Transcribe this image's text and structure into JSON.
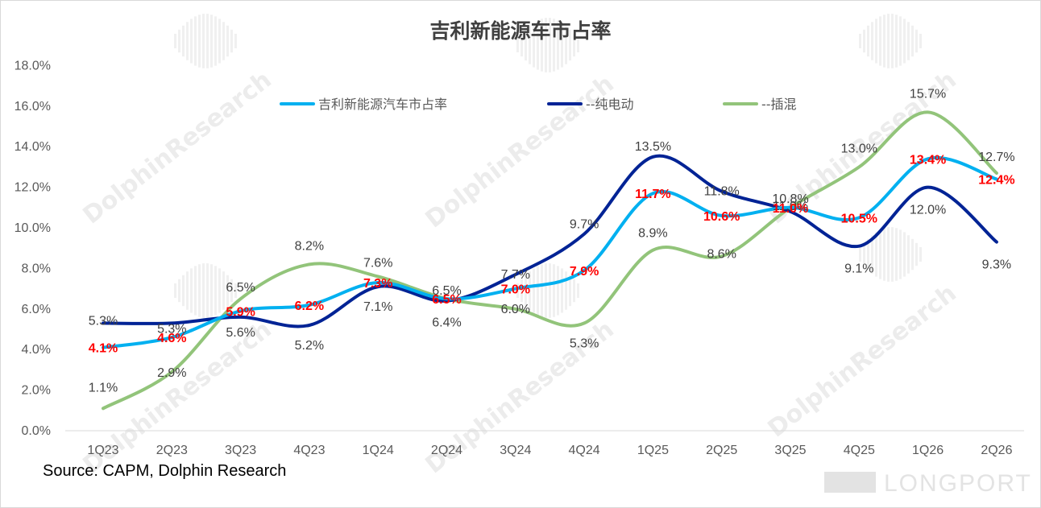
{
  "chart_data": {
    "type": "line",
    "title": "吉利新能源车市占率",
    "source": "Source: CAPM, Dolphin Research",
    "watermark": "DolphinResearch",
    "watermark_logo": "LONGPORT",
    "categories": [
      "1Q23",
      "2Q23",
      "3Q23",
      "4Q23",
      "1Q24",
      "2Q24",
      "3Q24",
      "4Q24",
      "1Q25",
      "2Q25",
      "3Q25",
      "4Q25",
      "1Q26",
      "2Q26"
    ],
    "yticks": [
      "0.0%",
      "2.0%",
      "4.0%",
      "6.0%",
      "8.0%",
      "10.0%",
      "12.0%",
      "14.0%",
      "16.0%",
      "18.0%"
    ],
    "ylim": [
      0,
      18
    ],
    "legend_position": "top",
    "grid": false,
    "series": [
      {
        "name": "吉利新能源汽车市占率",
        "color": "#00b0f0",
        "values": [
          4.1,
          4.6,
          5.9,
          6.2,
          7.3,
          6.5,
          7.0,
          7.9,
          11.7,
          10.6,
          11.0,
          10.5,
          13.4,
          12.4
        ],
        "labels": [
          "4.1%",
          "4.6%",
          "5.9%",
          "6.2%",
          "7.3%",
          "6.5%",
          "7.0%",
          "7.9%",
          "11.7%",
          "10.6%",
          "11.0%",
          "10.5%",
          "13.4%",
          "12.4%"
        ]
      },
      {
        "name": "--纯电动",
        "color": "#002395",
        "values": [
          5.3,
          5.3,
          5.6,
          5.2,
          7.1,
          6.4,
          7.7,
          9.7,
          13.5,
          11.8,
          10.8,
          9.1,
          12.0,
          9.3
        ],
        "labels": [
          "5.3%",
          "5.3%",
          "5.6%",
          "5.2%",
          "7.1%",
          "6.4%",
          "7.7%",
          "9.7%",
          "13.5%",
          "11.8%",
          "10.8%",
          "9.1%",
          "12.0%",
          "9.3%"
        ]
      },
      {
        "name": "--插混",
        "color": "#92c47a",
        "values": [
          1.1,
          2.9,
          6.5,
          8.2,
          7.6,
          6.5,
          6.0,
          5.3,
          8.9,
          8.6,
          11.0,
          13.0,
          15.7,
          12.7
        ],
        "labels": [
          "1.1%",
          "2.9%",
          "6.5%",
          "8.2%",
          "7.6%",
          "6.5%",
          "6.0%",
          "5.3%",
          "8.9%",
          "8.6%",
          "11.0%",
          "13.0%",
          "15.7%",
          "12.7%"
        ]
      }
    ]
  }
}
